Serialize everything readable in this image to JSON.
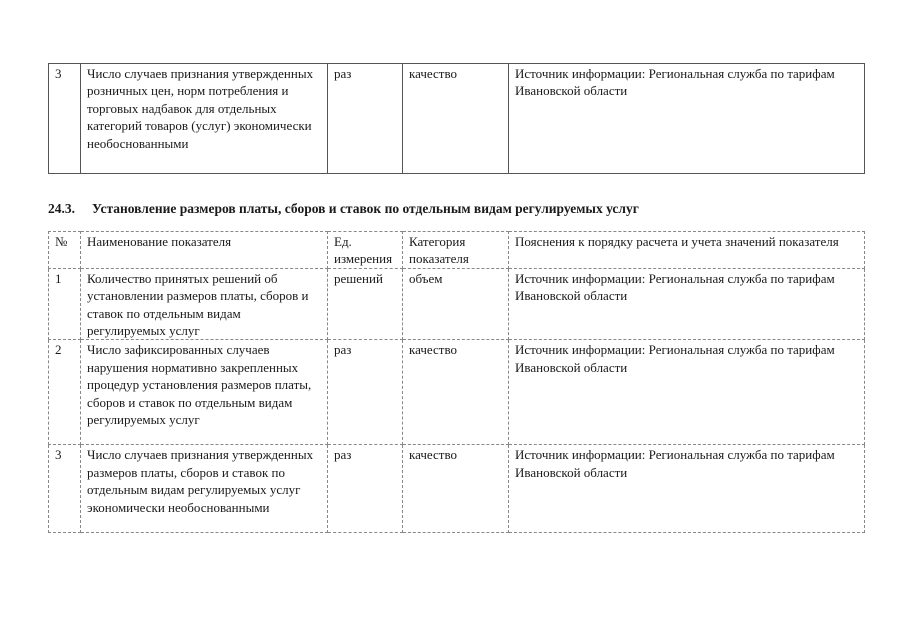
{
  "table_top": {
    "rows": [
      {
        "num": "3",
        "name": "Число случаев признания утвержденных розничных цен, норм потребления и торговых надбавок для отдельных категорий товаров (услуг) экономически необоснованными",
        "unit": "раз",
        "category": "качество",
        "notes": "Источник информации: Региональная служба по тарифам Ивановской области"
      }
    ]
  },
  "section": {
    "number": "24.3.",
    "title": "Установление размеров платы, сборов и ставок по отдельным видам регулируемых услуг"
  },
  "table_main": {
    "headers": {
      "num": "№",
      "name": "Наименование показателя",
      "unit": "Ед. измерения",
      "category": "Категория показателя",
      "notes": "Пояснения к порядку расчета и учета значений показателя"
    },
    "rows": [
      {
        "num": "1",
        "name": "Количество принятых решений об установлении размеров платы, сборов и ставок по отдельным видам регулируемых услуг",
        "unit": "решений",
        "category": "объем",
        "notes": "Источник информации: Региональная служба по тарифам Ивановской области"
      },
      {
        "num": "2",
        "name": "Число зафиксированных случаев нарушения нормативно закрепленных процедур установления размеров платы, сборов и ставок по отдельным видам регулируемых услуг",
        "unit": "раз",
        "category": "качество",
        "notes": "Источник информации: Региональная служба по тарифам Ивановской области"
      },
      {
        "num": "3",
        "name": "Число случаев признания утвержденных размеров платы, сборов и ставок по отдельным видам регулируемых услуг экономически необоснованными",
        "unit": "раз",
        "category": "качество",
        "notes": "Источник информации: Региональная служба по тарифам Ивановской области"
      }
    ]
  }
}
